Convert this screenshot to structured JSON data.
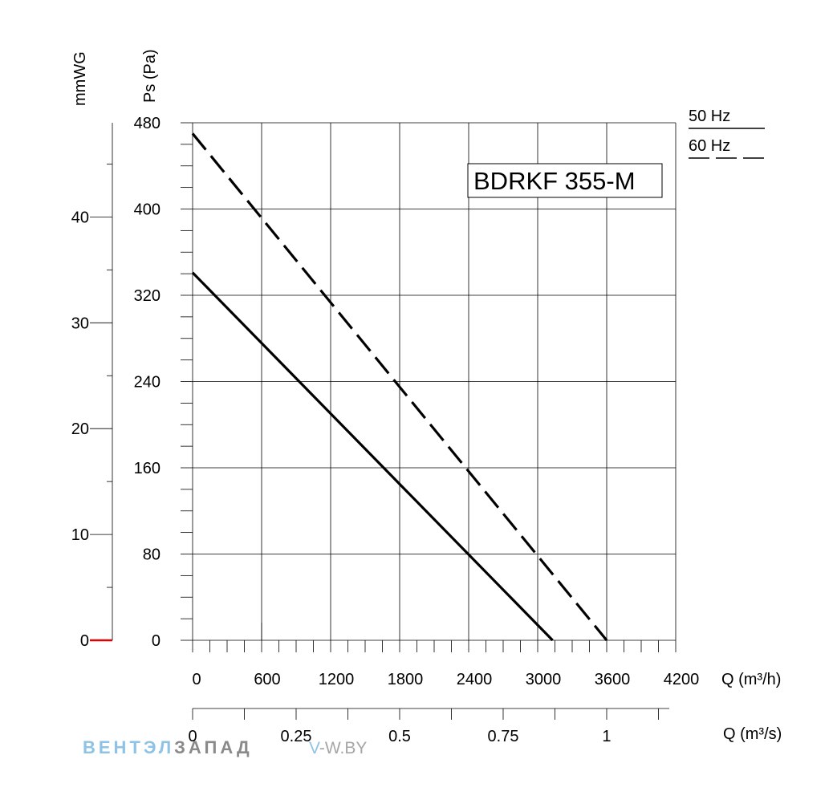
{
  "chart_data": {
    "type": "line",
    "title": "BDRKF 355-M",
    "ylabel": "Ps (Pa)",
    "ylabel_secondary": "mmWG",
    "xlabel": "Q (m³/h)",
    "xlabel_secondary": "Q (m³/s)",
    "xlim": [
      0,
      4200
    ],
    "ylim": [
      0,
      480
    ],
    "ylim_secondary": [
      0,
      48.9
    ],
    "xlim_secondary": [
      0,
      1.1667
    ],
    "x_ticks": [
      0,
      600,
      1200,
      1800,
      2400,
      3000,
      3600,
      4200
    ],
    "x_tick_labels": [
      "0",
      "600",
      "1200",
      "1800",
      "2400",
      "3000",
      "3600",
      "4200"
    ],
    "y_ticks": [
      0,
      80,
      160,
      240,
      320,
      400,
      480
    ],
    "y_tick_labels": [
      "0",
      "80",
      "160",
      "240",
      "320",
      "400",
      "480"
    ],
    "y2_ticks": [
      0,
      10,
      20,
      30,
      40
    ],
    "y2_tick_labels": [
      "0",
      "10",
      "20",
      "30",
      "40"
    ],
    "x2_ticks": [
      0,
      0.25,
      0.5,
      0.75,
      1
    ],
    "x2_tick_labels": [
      "0",
      "0.25",
      "0.5",
      "0.75",
      "1"
    ],
    "grid": true,
    "legend_position": "top-right",
    "series": [
      {
        "name": "50 Hz",
        "style": "solid",
        "x": [
          0,
          3130
        ],
        "y": [
          341,
          0
        ]
      },
      {
        "name": "60 Hz",
        "style": "dashed",
        "x": [
          0,
          3600
        ],
        "y": [
          470,
          0
        ]
      }
    ],
    "colors": {
      "line": "#000000",
      "grid": "#000000",
      "zero_marker": "#e00000"
    }
  },
  "watermark": {
    "brand_part1": "ВЕНТЭЛ",
    "brand_part2": "ЗАПАД",
    "site_part1": "V",
    "site_part2": "-W.BY"
  }
}
